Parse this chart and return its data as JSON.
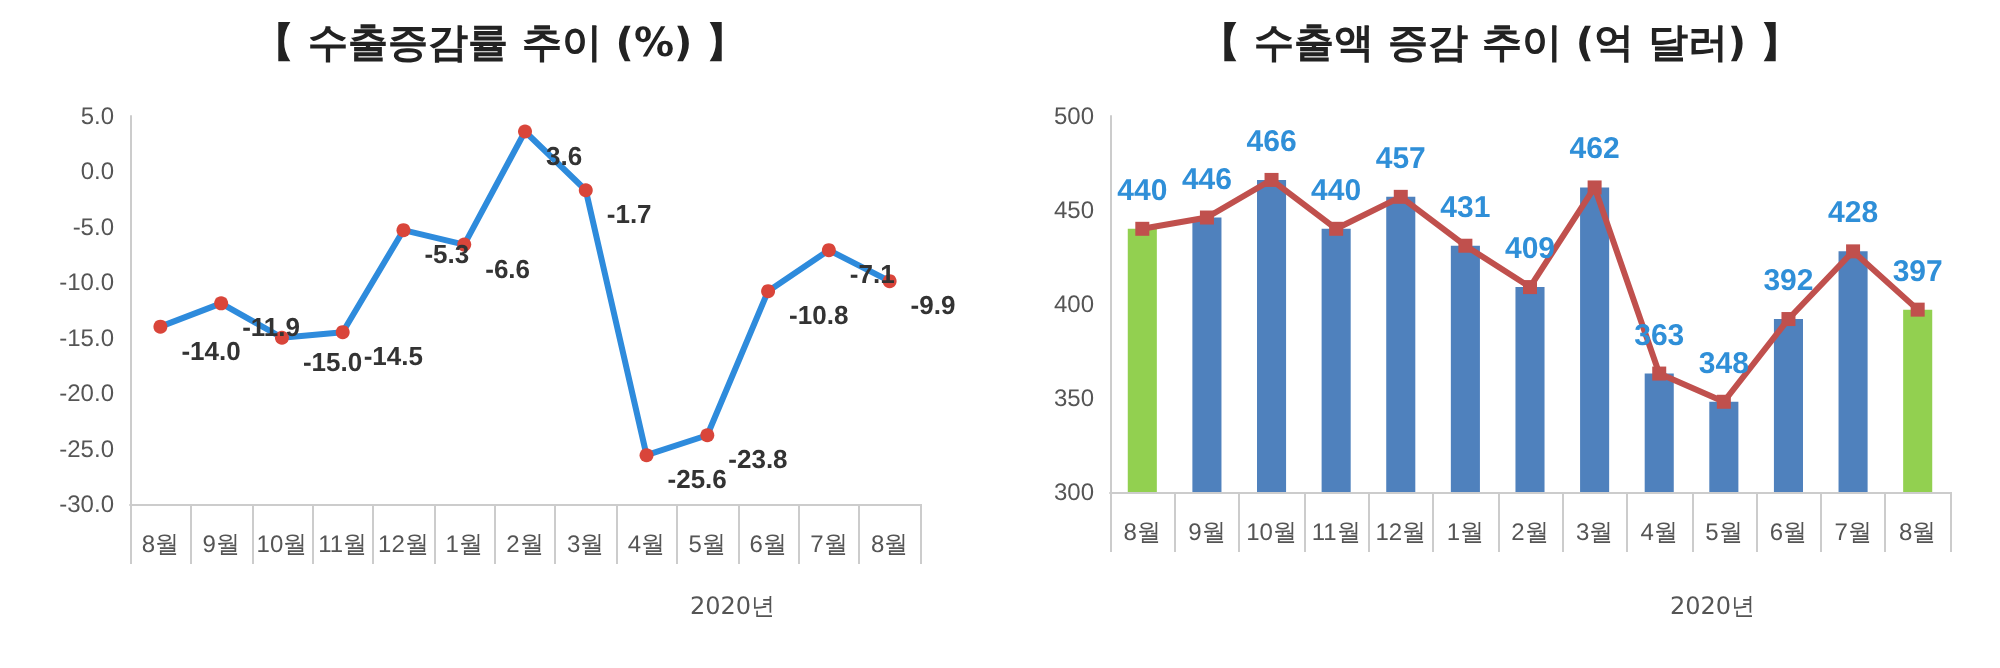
{
  "chart_data": [
    {
      "type": "line",
      "title": "【 수출증감률 추이 (%) 】",
      "categories": [
        "8월",
        "9월",
        "10월",
        "11월",
        "12월",
        "1월",
        "2월",
        "3월",
        "4월",
        "5월",
        "6월",
        "7월",
        "8월"
      ],
      "series": [
        {
          "color": "#2e8bdc",
          "values": [
            -14.0,
            -11.9,
            -15.0,
            -14.5,
            -5.3,
            -6.6,
            3.6,
            -1.7,
            -25.6,
            -23.8,
            -10.8,
            -7.1,
            -9.9
          ],
          "value_labels": [
            "-14.0",
            "-11.9",
            "-15.0",
            "-14.5",
            "-5.3",
            "-6.6",
            "3.6",
            "-1.7",
            "-25.6",
            "-23.8",
            "-10.8",
            "-7.1",
            "-9.9"
          ]
        }
      ],
      "ylim": [
        -30,
        5
      ],
      "yticks": [
        {
          "value": -30,
          "label": "-30.0"
        },
        {
          "value": -25,
          "label": "-25.0"
        },
        {
          "value": -20,
          "label": "-20.0"
        },
        {
          "value": -15,
          "label": "-15.0"
        },
        {
          "value": -10,
          "label": "-10.0"
        },
        {
          "value": -5,
          "label": "-5.0"
        },
        {
          "value": 0,
          "label": "0.0"
        },
        {
          "value": 5,
          "label": "5.0"
        }
      ],
      "marker": "circle",
      "annotations": [
        "2020년"
      ]
    },
    {
      "type": "bar",
      "title": "【 수출액 증감 추이 (억 달러) 】",
      "categories": [
        "8월",
        "9월",
        "10월",
        "11월",
        "12월",
        "1월",
        "2월",
        "3월",
        "4월",
        "5월",
        "6월",
        "7월",
        "8월"
      ],
      "series": [
        {
          "type": "bar",
          "color": "#2f8fd8",
          "colors": [
            "#92d050",
            "#4f81bd",
            "#4f81bd",
            "#4f81bd",
            "#4f81bd",
            "#4f81bd",
            "#4f81bd",
            "#4f81bd",
            "#4f81bd",
            "#4f81bd",
            "#4f81bd",
            "#4f81bd",
            "#92d050"
          ],
          "values": [
            440,
            446,
            466,
            440,
            457,
            431,
            409,
            462,
            363,
            348,
            392,
            428,
            397
          ]
        },
        {
          "type": "line",
          "color": "#c0504d",
          "values": [
            440,
            446,
            466,
            440,
            457,
            431,
            409,
            462,
            363,
            348,
            392,
            428,
            397
          ],
          "value_labels": [
            "440",
            "446",
            "466",
            "440",
            "457",
            "431",
            "409",
            "462",
            "363",
            "348",
            "392",
            "428",
            "397"
          ]
        }
      ],
      "ylim": [
        300,
        500
      ],
      "yticks": [
        300,
        350,
        400,
        450,
        500
      ],
      "marker": "square",
      "annotations": [
        "2020년"
      ]
    }
  ]
}
